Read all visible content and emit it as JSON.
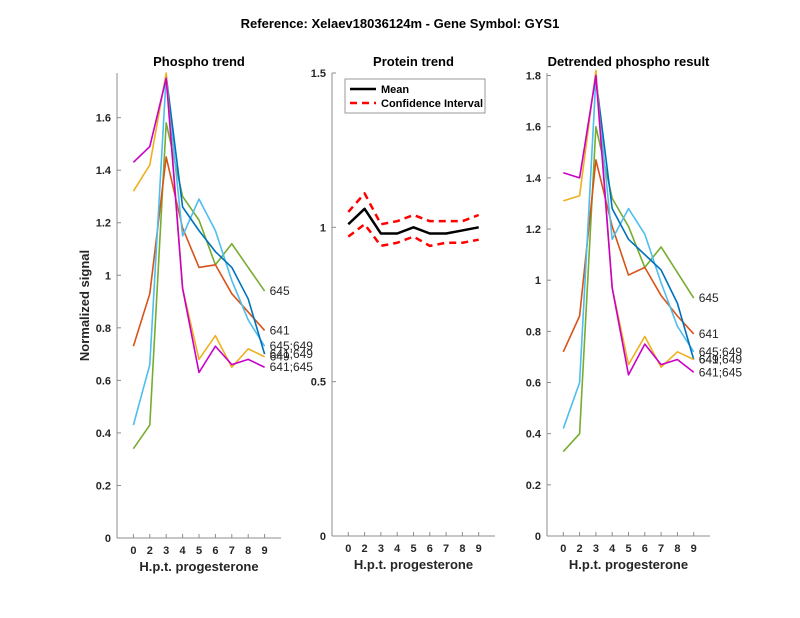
{
  "figure_title": "Reference:  Xelaev18036124m - Gene Symbol:  GYS1",
  "chart_data": [
    {
      "type": "line",
      "title": "Phospho trend",
      "xlabel": "H.p.t. progesterone",
      "ylabel": "Normalized signal",
      "categories": [
        "0",
        "2",
        "3",
        "4",
        "5",
        "6",
        "7",
        "8",
        "9"
      ],
      "ylim": [
        0,
        1.77
      ],
      "yticks": [
        "0",
        "0.2",
        "0.4",
        "0.6",
        "0.8",
        "1",
        "1.2",
        "1.4",
        "1.6"
      ],
      "ytick_values": [
        0,
        0.2,
        0.4,
        0.6,
        0.8,
        1,
        1.2,
        1.4,
        1.6
      ],
      "grid": false,
      "series": [
        {
          "name": "645",
          "color": "#77AC30",
          "values": [
            0.34,
            0.43,
            1.58,
            1.3,
            1.21,
            1.04,
            1.12,
            1.03,
            0.94
          ],
          "label": "645"
        },
        {
          "name": "641",
          "color": "#D95319",
          "values": [
            0.73,
            0.93,
            1.45,
            1.18,
            1.03,
            1.04,
            0.93,
            0.86,
            0.79
          ],
          "label": "641"
        },
        {
          "name": "645;649",
          "color": "#4DBEEE",
          "values": [
            0.43,
            0.66,
            1.76,
            1.15,
            1.29,
            1.17,
            0.98,
            0.83,
            0.73
          ],
          "label": "645;649"
        },
        {
          "name": "641;649",
          "color": "#0072BD",
          "values": [
            null,
            null,
            1.76,
            1.26,
            1.17,
            1.09,
            1.03,
            0.91,
            0.7
          ],
          "label": "641;649"
        },
        {
          "name": "649",
          "color": "#EDB120",
          "values": [
            1.32,
            1.42,
            1.77,
            0.95,
            0.68,
            0.77,
            0.65,
            0.72,
            0.69
          ],
          "label": "649"
        },
        {
          "name": "641;645",
          "color": "#C800C8",
          "values": [
            1.43,
            1.49,
            1.75,
            0.95,
            0.63,
            0.73,
            0.66,
            0.68,
            0.65
          ],
          "label": "641;645"
        }
      ]
    },
    {
      "type": "line",
      "title": "Protein trend",
      "xlabel": "H.p.t. progesterone",
      "ylabel": "",
      "categories": [
        "0",
        "2",
        "3",
        "4",
        "5",
        "6",
        "7",
        "8",
        "9"
      ],
      "ylim": [
        0,
        1.5
      ],
      "yticks": [
        "0",
        "0.5",
        "1",
        "1.5"
      ],
      "ytick_values": [
        0,
        0.5,
        1,
        1.5
      ],
      "grid": false,
      "legend": {
        "placement": "top-left",
        "entries": [
          "Mean",
          "Confidence Interval"
        ]
      },
      "series": [
        {
          "name": "Mean",
          "color": "#000000",
          "style": "solid",
          "values": [
            1.01,
            1.06,
            0.98,
            0.98,
            1.0,
            0.98,
            0.98,
            0.99,
            1.0
          ]
        },
        {
          "name": "Confidence Interval (upper)",
          "color": "#FF0000",
          "style": "dashed",
          "values": [
            1.05,
            1.11,
            1.01,
            1.02,
            1.04,
            1.02,
            1.02,
            1.02,
            1.04
          ]
        },
        {
          "name": "Confidence Interval (lower)",
          "color": "#FF0000",
          "style": "dashed",
          "values": [
            0.97,
            1.01,
            0.94,
            0.95,
            0.97,
            0.94,
            0.95,
            0.95,
            0.96
          ]
        }
      ]
    },
    {
      "type": "line",
      "title": "Detrended phospho result",
      "xlabel": "H.p.t. progesterone",
      "ylabel": "",
      "categories": [
        "0",
        "2",
        "3",
        "4",
        "5",
        "6",
        "7",
        "8",
        "9"
      ],
      "ylim": [
        0,
        1.81
      ],
      "yticks": [
        "0",
        "0.2",
        "0.4",
        "0.6",
        "0.8",
        "1",
        "1.2",
        "1.4",
        "1.6",
        "1.8"
      ],
      "ytick_values": [
        0,
        0.2,
        0.4,
        0.6,
        0.8,
        1,
        1.2,
        1.4,
        1.6,
        1.8
      ],
      "grid": false,
      "series": [
        {
          "name": "645",
          "color": "#77AC30",
          "values": [
            0.33,
            0.4,
            1.6,
            1.32,
            1.21,
            1.05,
            1.13,
            1.03,
            0.93
          ],
          "label": "645"
        },
        {
          "name": "641",
          "color": "#D95319",
          "values": [
            0.72,
            0.86,
            1.47,
            1.21,
            1.02,
            1.05,
            0.94,
            0.86,
            0.79
          ],
          "label": "641"
        },
        {
          "name": "645;649",
          "color": "#4DBEEE",
          "values": [
            0.42,
            0.6,
            1.79,
            1.16,
            1.28,
            1.18,
            0.99,
            0.82,
            0.72
          ],
          "label": "645;649"
        },
        {
          "name": "641;649",
          "color": "#0072BD",
          "values": [
            null,
            null,
            1.79,
            1.28,
            1.16,
            1.1,
            1.04,
            0.91,
            0.69
          ],
          "label": "641;649"
        },
        {
          "name": "649",
          "color": "#EDB120",
          "values": [
            1.31,
            1.33,
            1.82,
            0.97,
            0.67,
            0.78,
            0.66,
            0.72,
            0.69
          ],
          "label": "649"
        },
        {
          "name": "641;645",
          "color": "#C800C8",
          "values": [
            1.42,
            1.4,
            1.8,
            0.97,
            0.63,
            0.75,
            0.67,
            0.69,
            0.64
          ],
          "label": "641;645"
        }
      ]
    }
  ]
}
